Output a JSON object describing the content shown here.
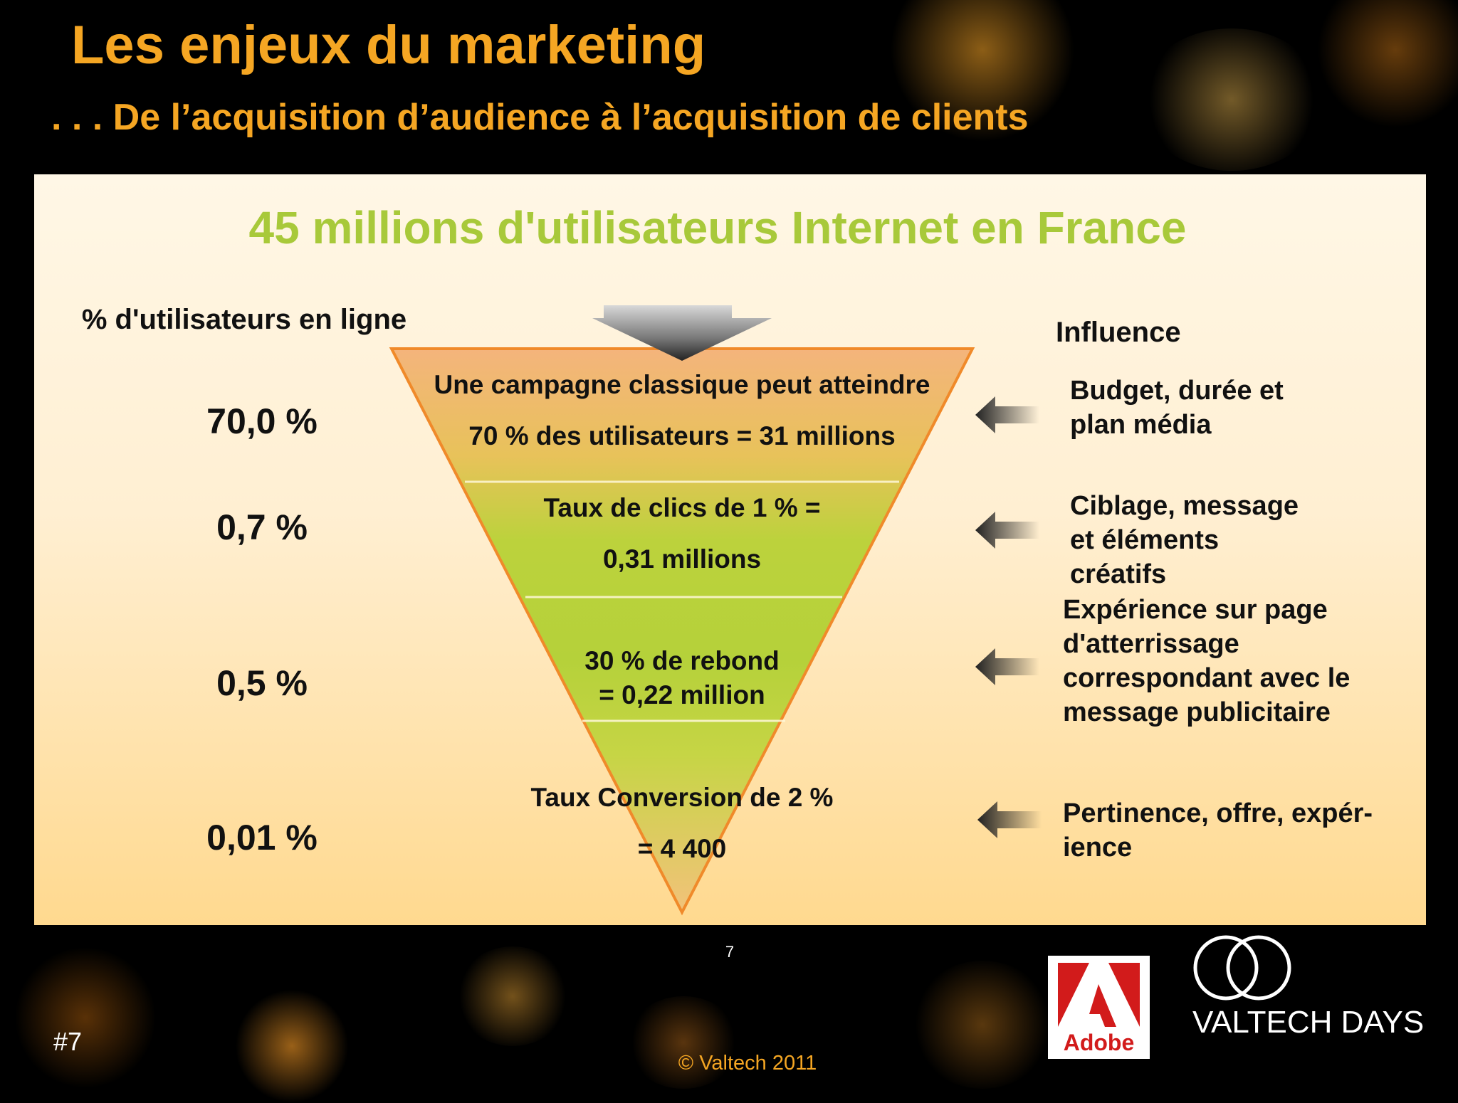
{
  "slide": {
    "title": "Les enjeux du marketing",
    "subtitle": ". . . De l’acquisition d’audience à l’acquisition de clients",
    "headline": "45 millions d'utilisateurs Internet en France",
    "page_number": "7",
    "hash_label": "#7",
    "copyright": "© Valtech 2011"
  },
  "left": {
    "heading": "% d'utilisateurs en ligne",
    "values": [
      "70,0 %",
      "0,7 %",
      "0,5 %",
      "0,01 %"
    ]
  },
  "funnel": {
    "stage1_line1": "Une campagne classique peut atteindre",
    "stage1_line2": "70 % des utilisateurs = 31 millions",
    "stage2_line1": "Taux de clics de 1 % =",
    "stage2_line2": "0,31 millions",
    "stage3_line1": "30 % de rebond",
    "stage3_line2": "= 0,22 million",
    "stage4_line1": "Taux Conversion de 2 %",
    "stage4_line2": "= 4 400"
  },
  "influence": {
    "heading": "Influence",
    "items": [
      [
        "Budget, durée et",
        "plan média"
      ],
      [
        "Ciblage, message",
        "et éléments",
        "créatifs"
      ],
      [
        "Expérience sur page",
        "d'atterrissage",
        "correspondant avec le",
        "message publicitaire"
      ],
      [
        "Pertinence, offre,  expér-",
        "ience"
      ]
    ]
  },
  "logos": {
    "adobe_text": "Adobe",
    "valtech_text": "VALTECH DAYS"
  },
  "colors": {
    "title": "#f5a623",
    "headline": "#a8c93a",
    "funnel_top": "#f4b77a",
    "funnel_green": "#b5d13a",
    "funnel_outline": "#f08a2a"
  }
}
